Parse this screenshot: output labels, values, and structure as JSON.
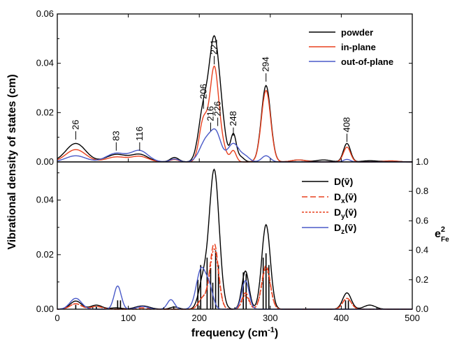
{
  "chart_data": [
    {
      "type": "line",
      "panel": "top",
      "xlim": [
        0,
        500
      ],
      "ylim": [
        0,
        0.06
      ],
      "yticks": [
        "0.00",
        "0.02",
        "0.04",
        "0.06"
      ],
      "legend_position": "top-right",
      "series": [
        {
          "name": "powder",
          "color": "#000000",
          "peaks": [
            [
              26,
              0.0075,
              14
            ],
            [
              83,
              0.003,
              14
            ],
            [
              116,
              0.003,
              12
            ],
            [
              165,
              0.0018,
              6
            ],
            [
              206,
              0.021,
              7
            ],
            [
              221,
              0.047,
              7
            ],
            [
              232,
              0.011,
              6
            ],
            [
              248,
              0.011,
              4
            ],
            [
              258,
              0.002,
              5
            ],
            [
              294,
              0.031,
              6.5
            ],
            [
              340,
              0.0008,
              10
            ],
            [
              375,
              0.0008,
              10
            ],
            [
              408,
              0.0075,
              5
            ],
            [
              440,
              0.0005,
              10
            ],
            [
              470,
              0.0004,
              10
            ]
          ]
        },
        {
          "name": "in-plane",
          "color": "#e8401e",
          "peaks": [
            [
              26,
              0.005,
              14
            ],
            [
              83,
              0.002,
              14
            ],
            [
              116,
              0.0022,
              12
            ],
            [
              165,
              0.001,
              6
            ],
            [
              206,
              0.017,
              6
            ],
            [
              221,
              0.037,
              6
            ],
            [
              232,
              0.006,
              6
            ],
            [
              248,
              0.0045,
              4
            ],
            [
              294,
              0.029,
              6.5
            ],
            [
              340,
              0.0008,
              10
            ],
            [
              408,
              0.006,
              5
            ],
            [
              470,
              0.0004,
              10
            ]
          ]
        },
        {
          "name": "out-of-plane",
          "color": "#4a5ac8",
          "peaks": [
            [
              26,
              0.0025,
              14
            ],
            [
              83,
              0.0035,
              14
            ],
            [
              116,
              0.0045,
              12
            ],
            [
              165,
              0.0012,
              6
            ],
            [
              210,
              0.009,
              9
            ],
            [
              224,
              0.01,
              7
            ],
            [
              248,
              0.0075,
              8
            ],
            [
              265,
              0.002,
              6
            ],
            [
              294,
              0.0025,
              6
            ],
            [
              408,
              0.001,
              5
            ]
          ]
        }
      ],
      "annotations": [
        {
          "text": "26",
          "x": 26,
          "y": 0.0085
        },
        {
          "text": "83",
          "x": 83,
          "y": 0.004
        },
        {
          "text": "116",
          "x": 116,
          "y": 0.004
        },
        {
          "text": "206",
          "x": 206,
          "y": 0.021
        },
        {
          "text": "221",
          "x": 221,
          "y": 0.039
        },
        {
          "text": "216",
          "x": 216,
          "y": 0.012
        },
        {
          "text": "226",
          "x": 226,
          "y": 0.014
        },
        {
          "text": "248",
          "x": 248,
          "y": 0.01
        },
        {
          "text": "294",
          "x": 294,
          "y": 0.032
        },
        {
          "text": "408",
          "x": 408,
          "y": 0.0075
        }
      ]
    },
    {
      "type": "line",
      "panel": "bottom",
      "xlim": [
        0,
        500
      ],
      "xticks": [
        0,
        100,
        200,
        300,
        400,
        500
      ],
      "xlabel_base": "frequency (cm",
      "xlabel_sup": "-1",
      "xlabel_end": ")",
      "ylim": [
        0,
        0.054
      ],
      "yticks": [
        "0.00",
        "0.02",
        "0.04"
      ],
      "y2lim": [
        0,
        1.0
      ],
      "y2ticks": [
        "0.0",
        "0.2",
        "0.4",
        "0.6",
        "0.8",
        "1.0"
      ],
      "y2label_base": "e",
      "y2label_sup": "2",
      "y2label_sub": "Fe",
      "legend_position": "top-right",
      "series": [
        {
          "name": "D",
          "sub": "",
          "color": "#000000",
          "dash": "",
          "peaks": [
            [
              26,
              0.003,
              8
            ],
            [
              55,
              0.0015,
              8
            ],
            [
              83,
              0.0005,
              8
            ],
            [
              120,
              0.0012,
              10
            ],
            [
              165,
              0.0008,
              6
            ],
            [
              205,
              0.01,
              6
            ],
            [
              221,
              0.051,
              7
            ],
            [
              265,
              0.014,
              5
            ],
            [
              294,
              0.031,
              6
            ],
            [
              408,
              0.006,
              6
            ],
            [
              440,
              0.0015,
              8
            ]
          ]
        },
        {
          "name": "D",
          "sub": "x",
          "color": "#e8401e",
          "dash": "8,4",
          "peaks": [
            [
              26,
              0.002,
              8
            ],
            [
              55,
              0.001,
              8
            ],
            [
              120,
              0.0005,
              10
            ],
            [
              205,
              0.004,
              6
            ],
            [
              221,
              0.024,
              6
            ],
            [
              265,
              0.006,
              5
            ],
            [
              294,
              0.016,
              6
            ],
            [
              408,
              0.004,
              6
            ]
          ]
        },
        {
          "name": "D",
          "sub": "y",
          "color": "#e8401e",
          "dash": "3,2",
          "peaks": [
            [
              26,
              0.002,
              8
            ],
            [
              55,
              0.001,
              8
            ],
            [
              205,
              0.004,
              6
            ],
            [
              221,
              0.022,
              6
            ],
            [
              265,
              0.005,
              5
            ],
            [
              294,
              0.015,
              6
            ],
            [
              408,
              0.004,
              6
            ]
          ]
        },
        {
          "name": "D",
          "sub": "z",
          "color": "#4a5ac8",
          "dash": "",
          "peaks": [
            [
              26,
              0.004,
              8
            ],
            [
              85,
              0.0085,
              5
            ],
            [
              120,
              0.001,
              8
            ],
            [
              160,
              0.0035,
              5
            ],
            [
              203,
              0.015,
              7
            ],
            [
              215,
              0.006,
              5
            ],
            [
              265,
              0.0105,
              5
            ]
          ]
        }
      ],
      "sticks": [
        {
          "x": 26,
          "e2": 0.03
        },
        {
          "x": 55,
          "e2": 0.02
        },
        {
          "x": 85,
          "e2": 0.06
        },
        {
          "x": 89,
          "e2": 0.06
        },
        {
          "x": 164,
          "e2": 0.02
        },
        {
          "x": 198,
          "e2": 0.2
        },
        {
          "x": 202,
          "e2": 0.3
        },
        {
          "x": 211,
          "e2": 0.35
        },
        {
          "x": 216,
          "e2": 0.28
        },
        {
          "x": 219,
          "e2": 0.18
        },
        {
          "x": 223,
          "e2": 0.4
        },
        {
          "x": 227,
          "e2": 0.3
        },
        {
          "x": 262,
          "e2": 0.25
        },
        {
          "x": 266,
          "e2": 0.24
        },
        {
          "x": 290,
          "e2": 0.35
        },
        {
          "x": 294,
          "e2": 0.38
        },
        {
          "x": 298,
          "e2": 0.3
        },
        {
          "x": 406,
          "e2": 0.06
        },
        {
          "x": 410,
          "e2": 0.06
        }
      ]
    }
  ],
  "ylabel": "Vibrational density of states (cm)"
}
